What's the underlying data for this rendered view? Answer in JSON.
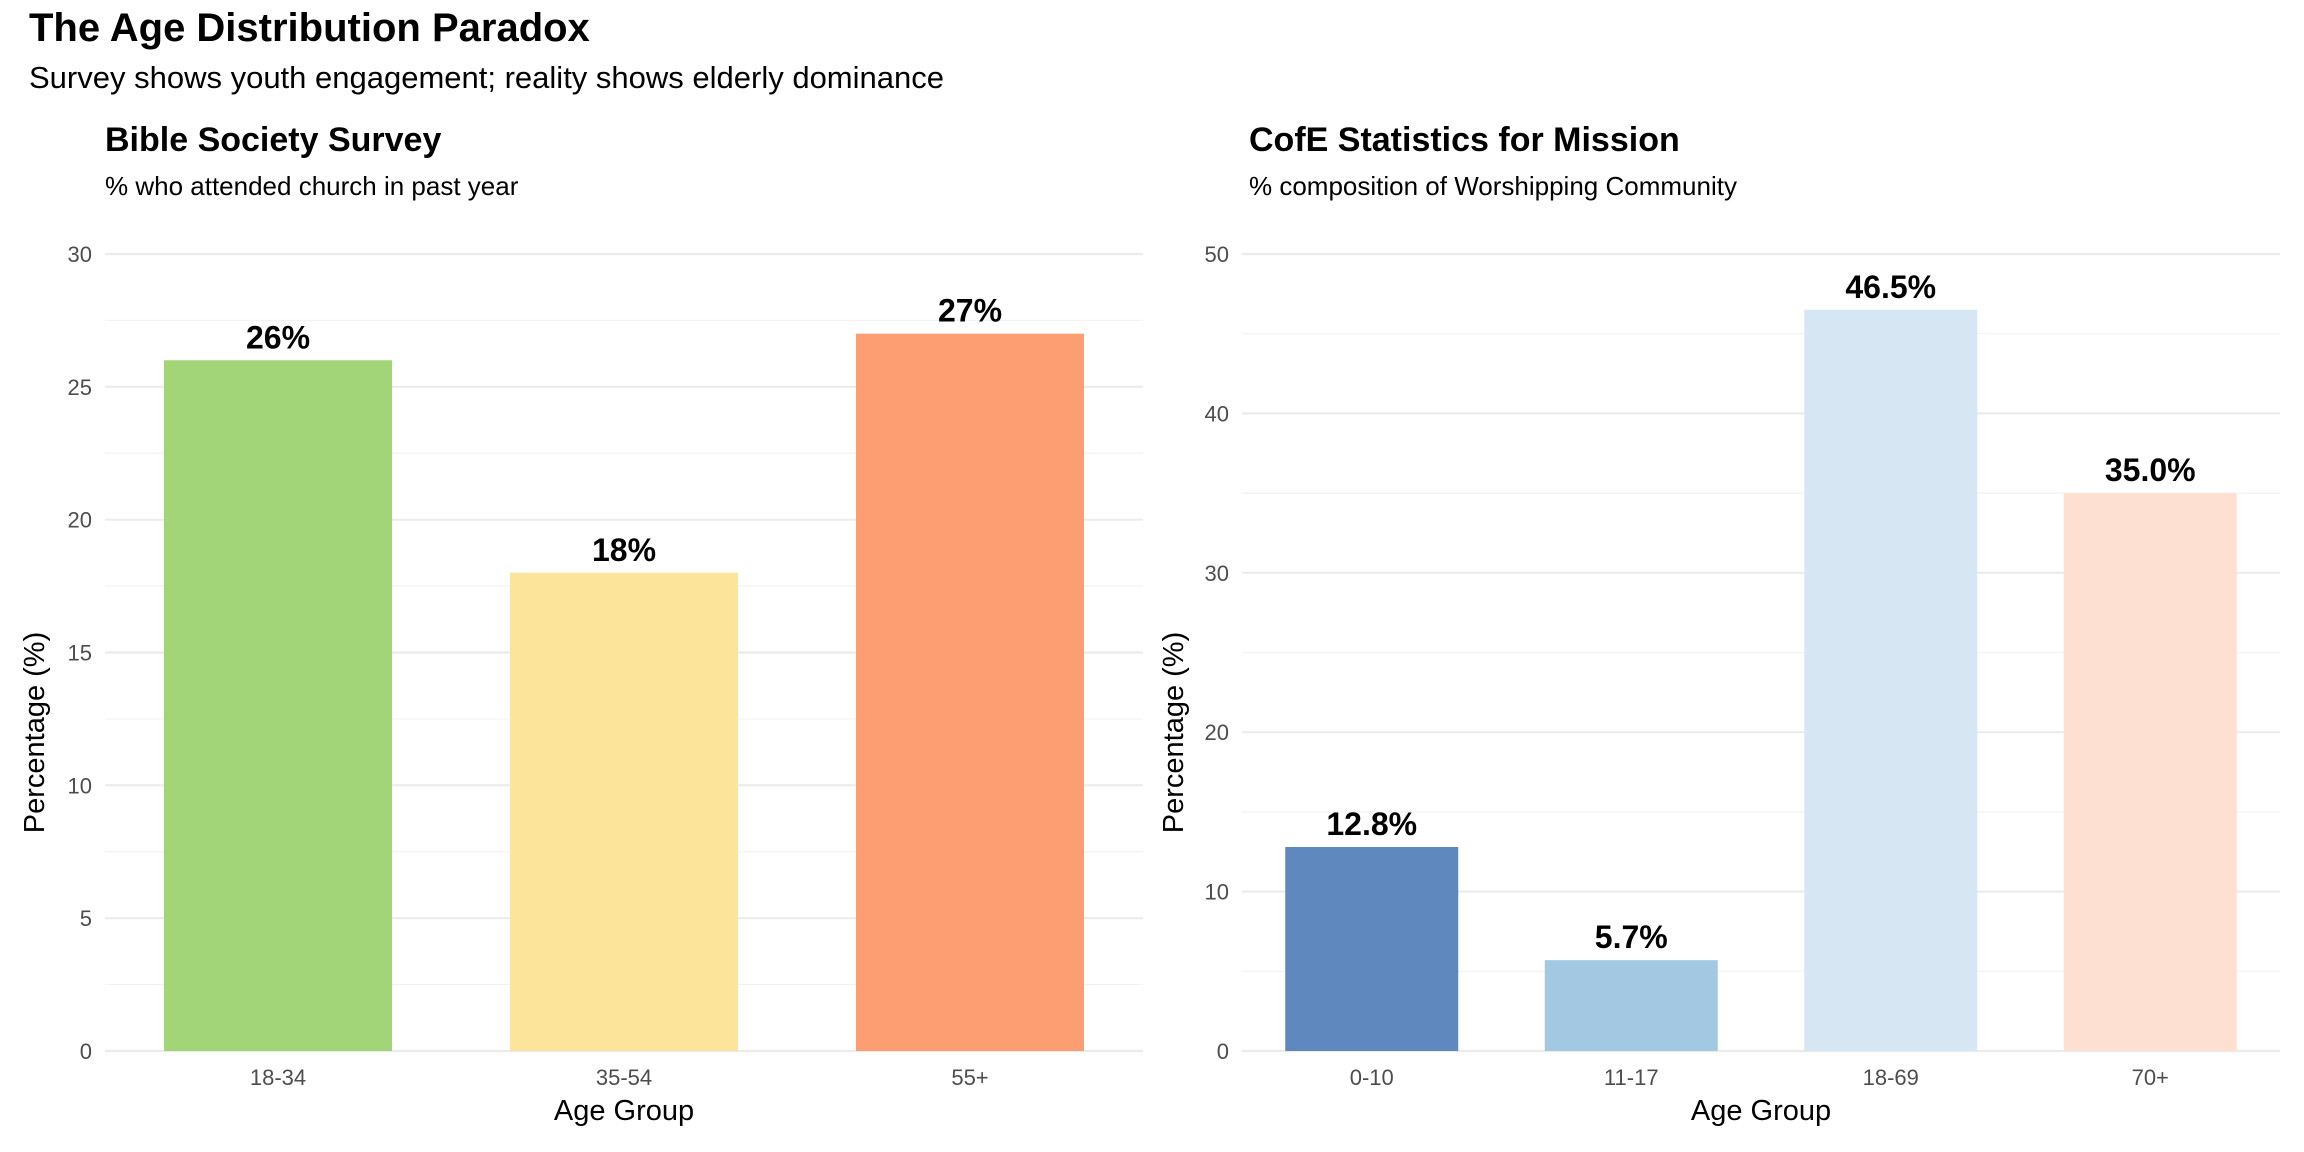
{
  "header": {
    "title": "The Age Distribution Paradox",
    "subtitle": "Survey shows youth engagement; reality shows elderly dominance"
  },
  "chart_data": [
    {
      "type": "bar",
      "title": "Bible Society Survey",
      "subtitle": "% who attended church in past year",
      "xlabel": "Age Group",
      "ylabel": "Percentage (%)",
      "categories": [
        "18-34",
        "35-54",
        "55+"
      ],
      "values": [
        26,
        18,
        27
      ],
      "data_labels": [
        "26%",
        "18%",
        "27%"
      ],
      "colors": [
        "#a1d577",
        "#fce49a",
        "#fc9e72"
      ],
      "ylim": [
        0,
        30
      ],
      "yticks": [
        0,
        5,
        10,
        15,
        20,
        25,
        30
      ],
      "grid": true
    },
    {
      "type": "bar",
      "title": "CofE Statistics for Mission",
      "subtitle": "% composition of Worshipping Community",
      "xlabel": "Age Group",
      "ylabel": "Percentage (%)",
      "categories": [
        "0-10",
        "11-17",
        "18-69",
        "70+"
      ],
      "values": [
        12.8,
        5.7,
        46.5,
        35.0
      ],
      "data_labels": [
        "12.8%",
        "5.7%",
        "46.5%",
        "35.0%"
      ],
      "colors": [
        "#5f89be",
        "#a3c9e2",
        "#d6e7f3",
        "#fde0d2"
      ],
      "ylim": [
        0,
        50
      ],
      "yticks": [
        0,
        10,
        20,
        30,
        40,
        50
      ],
      "grid": true
    }
  ]
}
